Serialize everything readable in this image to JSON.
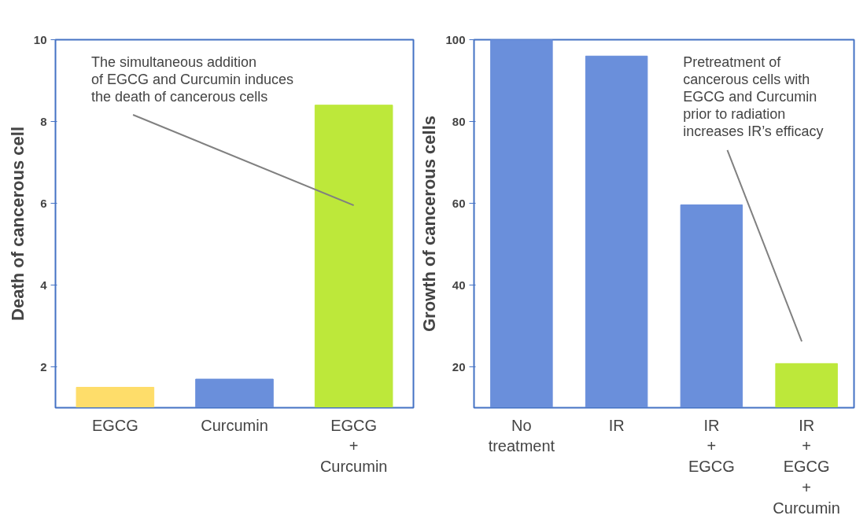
{
  "chart_data": [
    {
      "type": "bar",
      "ylabel": "Death of cancerous cell",
      "categories": [
        "EGCG",
        "Curcumin",
        "EGCG\n+\nCurcumin"
      ],
      "values": [
        1.5,
        1.7,
        8.4
      ],
      "colors": [
        "#fedd6a",
        "#6a8fdb",
        "#bde83a"
      ],
      "ylim": [
        1,
        10
      ],
      "yticks": [
        2,
        4,
        6,
        8,
        10
      ],
      "grid": false,
      "annotations": [
        "The simultaneous addition\nof EGCG and Curcumin induces\nthe death of cancerous cells"
      ]
    },
    {
      "type": "bar",
      "ylabel": "Growth of cancerous cells",
      "categories": [
        "No\ntreatment",
        "IR",
        "IR\n+\nEGCG",
        "IR\n+\nEGCG\n+\nCurcumin"
      ],
      "values": [
        100,
        96,
        59.6,
        20.8
      ],
      "colors": [
        "#6a8fdb",
        "#6a8fdb",
        "#6a8fdb",
        "#bde83a"
      ],
      "ylim": [
        10,
        100
      ],
      "yticks": [
        20,
        40,
        60,
        80,
        100
      ],
      "grid": false,
      "annotations": [
        "Pretreatment of\ncancerous cells with\nEGCG and Curcumin\nprior to radiation\nincreases IR’s efficacy"
      ]
    }
  ]
}
